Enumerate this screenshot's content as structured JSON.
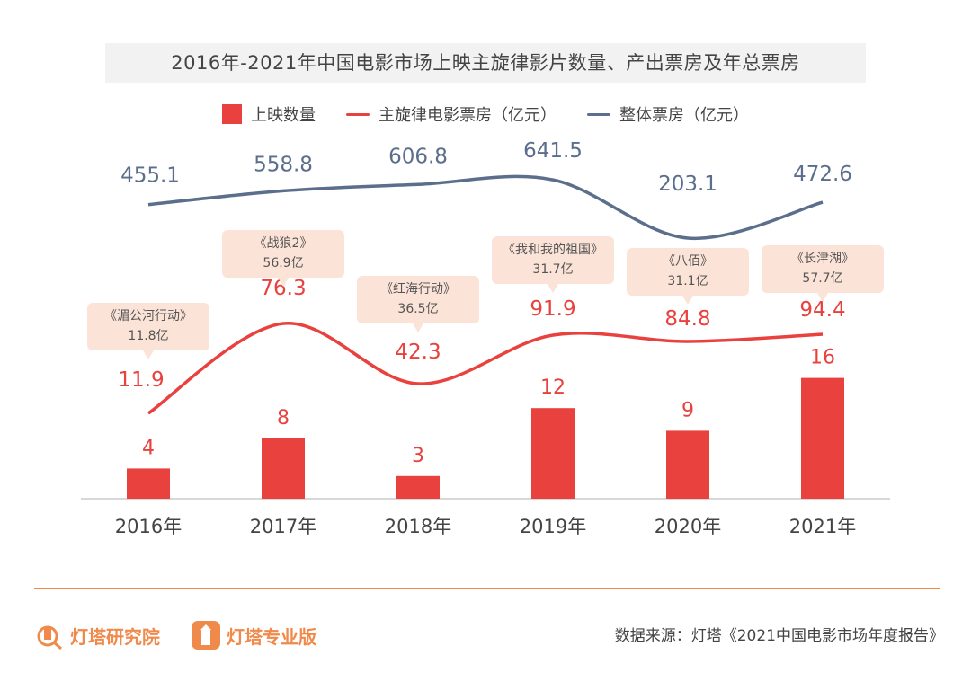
{
  "colors": {
    "bar": "#e8413e",
    "theme_line": "#e8413e",
    "total_line": "#5b6e8c",
    "callout_bg": "#fce3d8",
    "accent": "#f08a4b"
  },
  "title": "2016年-2021年中国电影市场上映主旋律影片数量、产出票房及年总票房",
  "chart_data": {
    "type": "bar+line",
    "title": "2016年-2021年中国电影市场上映主旋律影片数量、产出票房及年总票房",
    "categories": [
      "2016年",
      "2017年",
      "2018年",
      "2019年",
      "2020年",
      "2021年"
    ],
    "legend_position": "top",
    "series": [
      {
        "name": "上映数量",
        "type": "bar",
        "values": [
          4,
          8,
          3,
          12,
          9,
          16
        ]
      },
      {
        "name": "主旋律电影票房（亿元）",
        "type": "line",
        "values": [
          11.9,
          76.3,
          42.3,
          91.9,
          84.8,
          94.4
        ]
      },
      {
        "name": "整体票房（亿元）",
        "type": "line",
        "values": [
          455.1,
          558.8,
          606.8,
          641.5,
          203.1,
          472.6
        ]
      }
    ],
    "annotations": [
      {
        "film": "《湄公河行动》",
        "value": "11.8亿"
      },
      {
        "film": "《战狼2》",
        "value": "56.9亿"
      },
      {
        "film": "《红海行动》",
        "value": "36.5亿"
      },
      {
        "film": "《我和我的祖国》",
        "value": "31.7亿"
      },
      {
        "film": "《八佰》",
        "value": "31.1亿"
      },
      {
        "film": "《长津湖》",
        "value": "57.7亿"
      }
    ],
    "grid": false
  },
  "footer": {
    "brand1": "灯塔研究院",
    "brand2": "灯塔专业版",
    "source": "数据来源：灯塔《2021中国电影市场年度报告》"
  }
}
